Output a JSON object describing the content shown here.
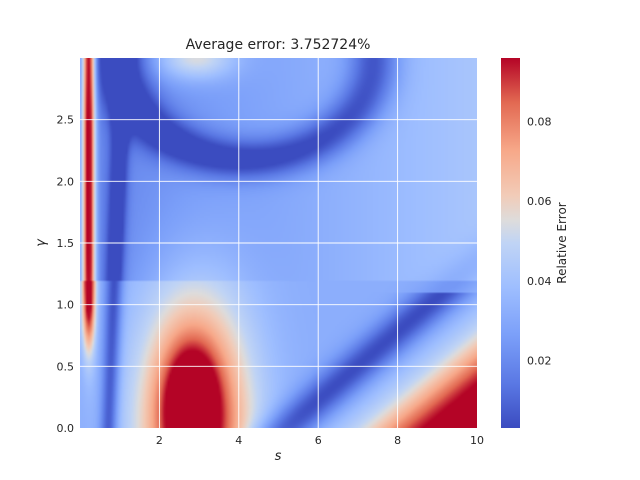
{
  "chart_data": {
    "type": "heatmap",
    "title": "Average error: 3.752724%",
    "xlabel": "s",
    "ylabel": "γ",
    "xlim": [
      0,
      10
    ],
    "ylim": [
      0,
      3
    ],
    "x_ticks": [
      2,
      4,
      6,
      8,
      10
    ],
    "x_tick_labels": [
      "2",
      "4",
      "6",
      "8",
      "10"
    ],
    "y_ticks": [
      0.0,
      0.5,
      1.0,
      1.5,
      2.0,
      2.5
    ],
    "y_tick_labels": [
      "0.0",
      "0.5",
      "1.0",
      "1.5",
      "2.0",
      "2.5"
    ],
    "grid": true,
    "colormap": "coolwarm",
    "colorbar": {
      "label": "Relative Error",
      "range": [
        0.003,
        0.096
      ],
      "ticks": [
        0.02,
        0.04,
        0.06,
        0.08
      ],
      "tick_labels": [
        "0.02",
        "0.04",
        "0.06",
        "0.08"
      ]
    },
    "features": [
      {
        "region": "high-error ridge",
        "s": [
          0.05,
          0.6
        ],
        "gamma": [
          0.7,
          3.0
        ],
        "value": 0.096
      },
      {
        "region": "high-error lobe",
        "s": [
          1.5,
          4.3
        ],
        "gamma": [
          0.0,
          1.45
        ],
        "value": 0.09
      },
      {
        "region": "high-error corner",
        "s": [
          7.3,
          10.0
        ],
        "gamma": [
          0.0,
          0.55
        ],
        "value": 0.095
      },
      {
        "region": "low-error arc",
        "s": [
          1.5,
          7.0
        ],
        "gamma": [
          2.1,
          2.8
        ],
        "value": 0.004
      },
      {
        "region": "low-error diagonal",
        "s": [
          5.0,
          9.0
        ],
        "gamma": [
          0.0,
          1.0
        ],
        "value": 0.005
      },
      {
        "region": "moderate-error top",
        "s": [
          1.8,
          4.5
        ],
        "gamma": [
          2.8,
          3.0
        ],
        "value": 0.06
      }
    ]
  },
  "colors": {
    "cmap_low": "#3b4cc0",
    "cmap_mid": "#dddddd",
    "cmap_high": "#b40426",
    "grid": "#ffffff",
    "text": "#262626"
  }
}
